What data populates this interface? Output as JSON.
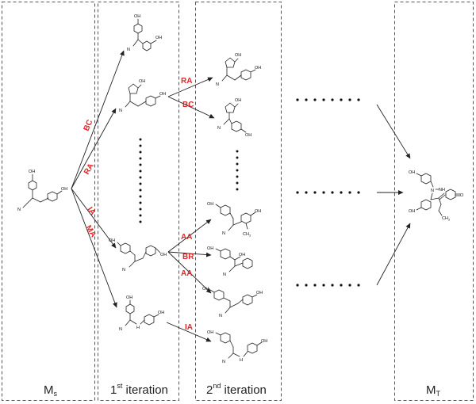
{
  "panels": {
    "source": {
      "label": "M",
      "sub": "s"
    },
    "iter1": {
      "pre": "1",
      "sup": "st",
      "post": " iteration"
    },
    "iter2": {
      "pre": "2",
      "sup": "nd",
      "post": " iteration"
    },
    "target": {
      "label": "M",
      "sub": "T"
    }
  },
  "reactions": {
    "first": [
      "BC",
      "RA",
      "IA",
      "MA"
    ],
    "second": [
      "RA",
      "BC",
      "AA",
      "BR",
      "AA",
      "IA"
    ]
  },
  "atoms": {
    "oh": "OH",
    "n": "N",
    "h": "H",
    "nh": "NH",
    "o": "O",
    "ch": "CH",
    "three": "3"
  },
  "colors": {
    "reaction_label": "#e4262a",
    "panel_border": "#555555",
    "ink": "#222222"
  }
}
